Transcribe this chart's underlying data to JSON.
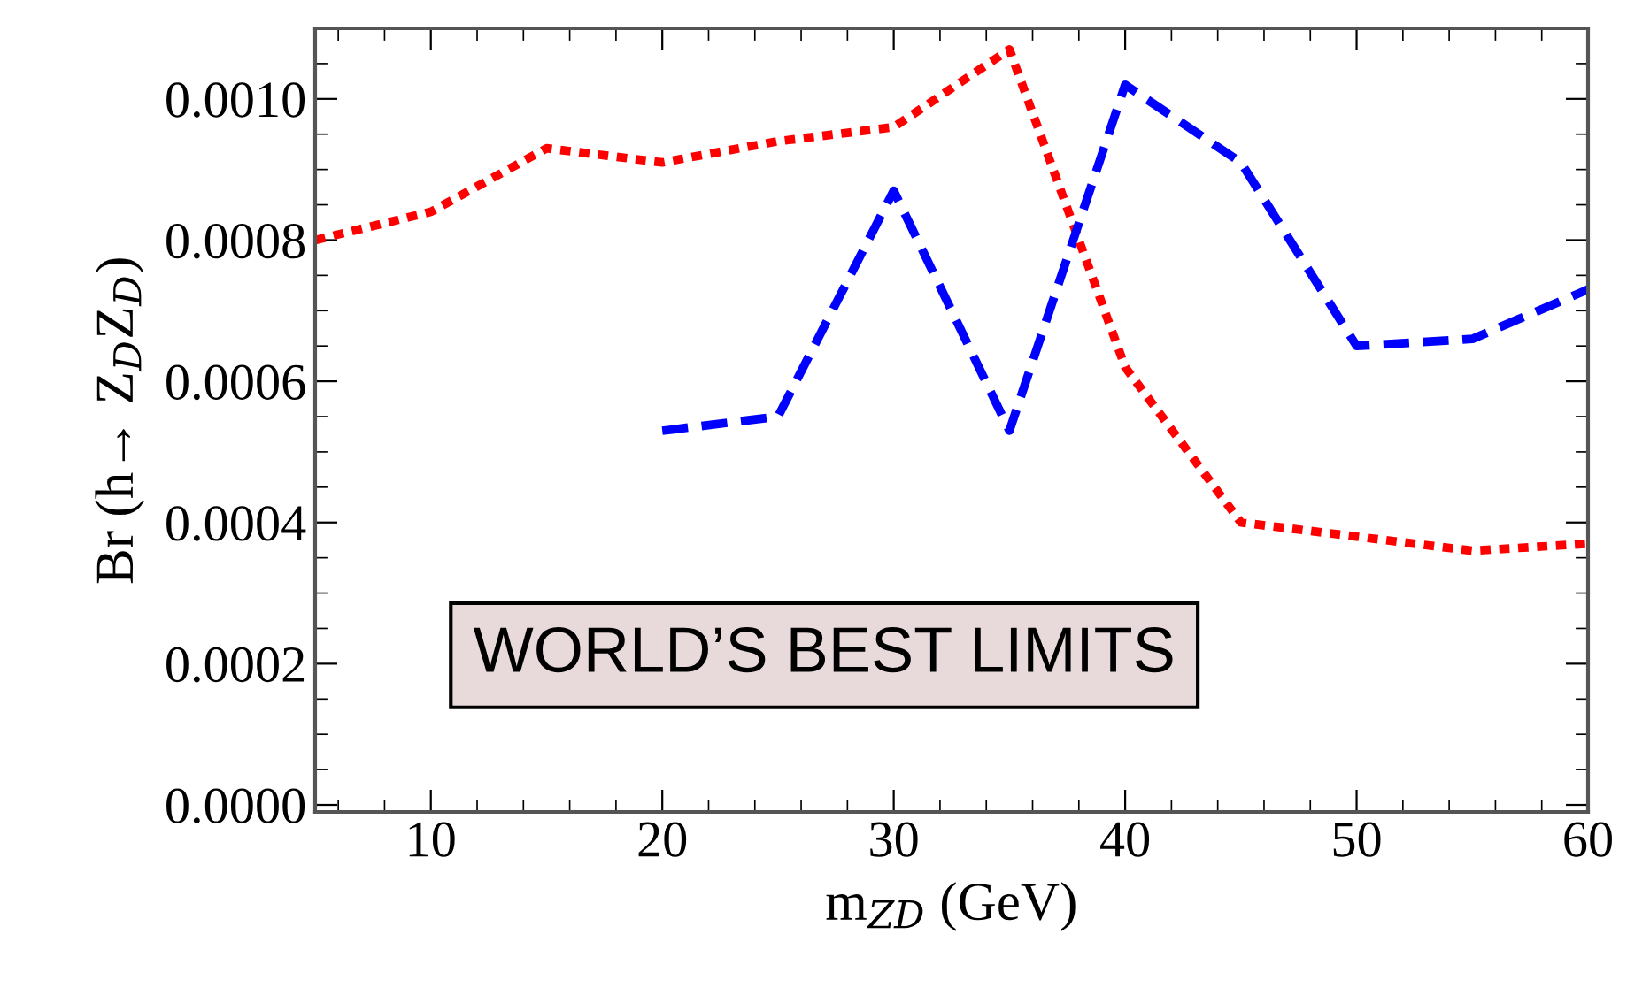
{
  "chart_data": {
    "type": "line",
    "xlabel": "m$_{ZD}$ (GeV)",
    "ylabel": "Br (h→ Z$_{D}$Z$_{D}$)",
    "series": [
      {
        "color": "#ff0000",
        "line_style": "dotted",
        "x": [
          5,
          10,
          15,
          20,
          25,
          30,
          35,
          40,
          45,
          50,
          55,
          60
        ],
        "values": [
          0.0008,
          0.00084,
          0.00093,
          0.00091,
          0.00094,
          0.00096,
          0.00107,
          0.00062,
          0.0004,
          0.00038,
          0.00036,
          0.00037
        ]
      },
      {
        "color": "#0000ff",
        "line_style": "dashed",
        "x": [
          20,
          25,
          30,
          35,
          40,
          45,
          50,
          55,
          60
        ],
        "values": [
          0.00053,
          0.00055,
          0.00087,
          0.00053,
          0.00102,
          0.00091,
          0.00065,
          0.00066,
          0.00073
        ]
      }
    ],
    "xlim": [
      5,
      60
    ],
    "xticks": [
      10,
      20,
      30,
      40,
      50,
      60
    ],
    "ylim": [
      -1e-05,
      0.0011
    ],
    "yticks": [
      {
        "value": 0,
        "label": "0.0000"
      },
      {
        "value": 0.0002,
        "label": "0.0002"
      },
      {
        "value": 0.0004,
        "label": "0.0004"
      },
      {
        "value": 0.0006,
        "label": "0.0006"
      },
      {
        "value": 0.0008,
        "label": "0.0008"
      },
      {
        "value": 0.001,
        "label": "0.0010"
      }
    ],
    "annotations": [
      "WORLD’S BEST LIMITS"
    ],
    "grid": false,
    "legend": false
  }
}
